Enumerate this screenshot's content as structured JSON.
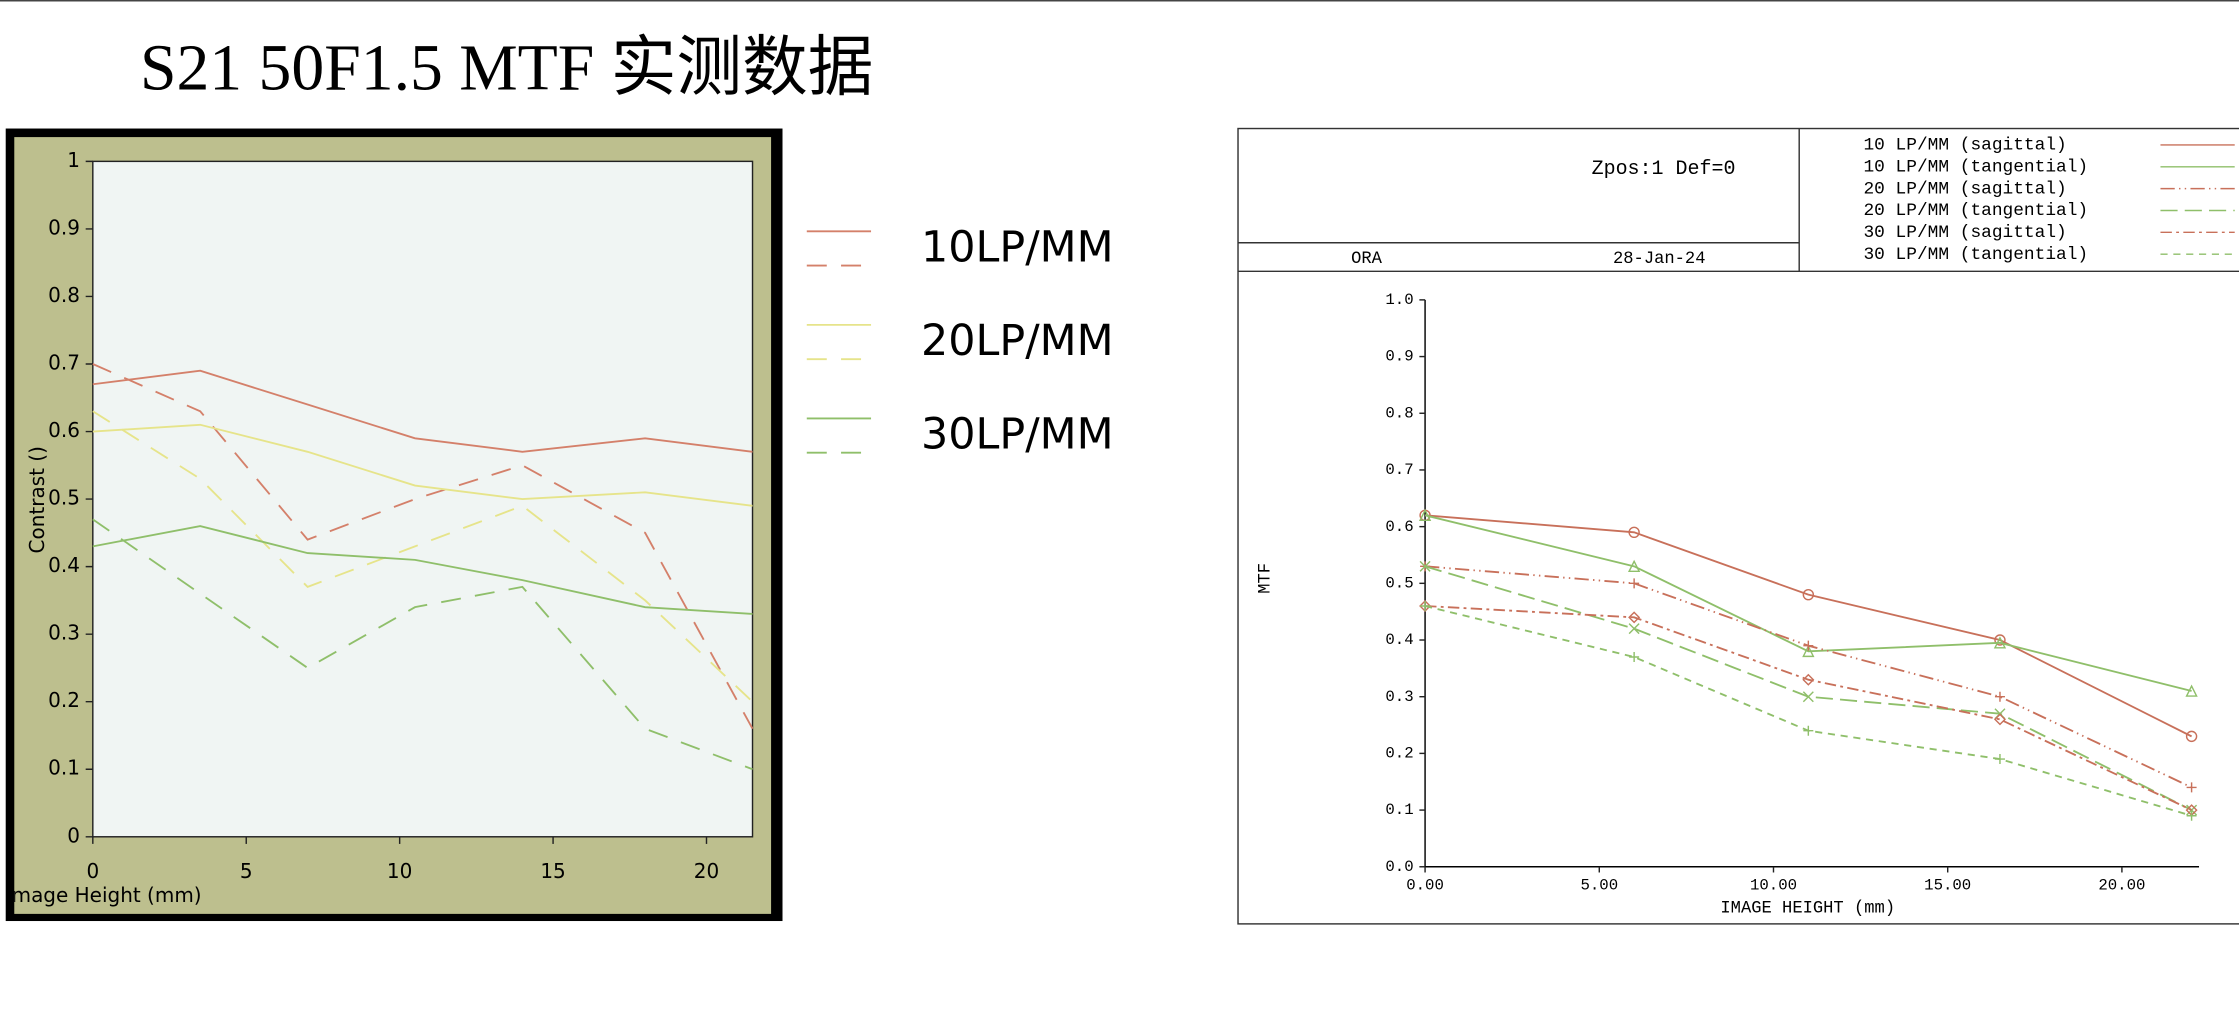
{
  "title": "S21 50F1.5  MTF  实测数据",
  "chart_data": [
    {
      "type": "line",
      "x_label": "Image Height (mm)",
      "y_label": "Contrast ()",
      "x": [
        0,
        3.5,
        7,
        10.5,
        14,
        18,
        21.5
      ],
      "xlim": [
        0,
        21.5
      ],
      "xticks": [
        0,
        5,
        10,
        15,
        20
      ],
      "ylim": [
        0,
        1
      ],
      "yticks": [
        0,
        0.1,
        0.2,
        0.3,
        0.4,
        0.5,
        0.6,
        0.7,
        0.8,
        0.9,
        1
      ],
      "series": [
        {
          "name": "10LP/MM",
          "color": "#d4806a",
          "values": [
            0.67,
            0.69,
            0.64,
            0.59,
            0.57,
            0.59,
            0.57
          ],
          "dashed_values": [
            0.7,
            0.63,
            0.44,
            0.5,
            0.55,
            0.45,
            0.16
          ]
        },
        {
          "name": "20LP/MM",
          "color": "#e6e48a",
          "values": [
            0.6,
            0.61,
            0.57,
            0.52,
            0.5,
            0.51,
            0.49
          ],
          "dashed_values": [
            0.63,
            0.53,
            0.37,
            0.43,
            0.49,
            0.35,
            0.2
          ]
        },
        {
          "name": "30LP/MM",
          "color": "#8fbf6a",
          "values": [
            0.43,
            0.46,
            0.42,
            0.41,
            0.38,
            0.34,
            0.33
          ],
          "dashed_values": [
            0.47,
            0.36,
            0.25,
            0.34,
            0.37,
            0.16,
            0.1
          ]
        }
      ]
    },
    {
      "type": "line",
      "title": "Zpos:1 Def=0",
      "label": "ORA",
      "date": "28-Jan-24",
      "x_label": "IMAGE HEIGHT (mm)",
      "y_label": "MTF",
      "x": [
        0,
        6,
        11,
        16.5,
        22
      ],
      "xlim": [
        0,
        22
      ],
      "xticks": [
        {
          "value": 0,
          "label": "0.00"
        },
        {
          "value": 5,
          "label": "5.00"
        },
        {
          "value": 10,
          "label": "10.00"
        },
        {
          "value": 15,
          "label": "15.00"
        },
        {
          "value": 20,
          "label": "20.00"
        }
      ],
      "ylim": [
        0,
        1
      ],
      "yticks": [
        {
          "value": 0,
          "label": "0.0"
        },
        {
          "value": 0.1,
          "label": "0.1"
        },
        {
          "value": 0.2,
          "label": "0.2"
        },
        {
          "value": 0.3,
          "label": "0.3"
        },
        {
          "value": 0.4,
          "label": "0.4"
        },
        {
          "value": 0.5,
          "label": "0.5"
        },
        {
          "value": 0.6,
          "label": "0.6"
        },
        {
          "value": 0.7,
          "label": "0.7"
        },
        {
          "value": 0.8,
          "label": "0.8"
        },
        {
          "value": 0.9,
          "label": "0.9"
        },
        {
          "value": 1,
          "label": "1.0"
        }
      ],
      "series": [
        {
          "name": "10 LP/MM (sagittal)",
          "color": "#c8705a",
          "dash": "none",
          "marker": "circle",
          "values": [
            0.62,
            0.59,
            0.48,
            0.4,
            0.23
          ]
        },
        {
          "name": "10 LP/MM (tangential)",
          "color": "#8fbf6a",
          "dash": "none",
          "marker": "triangle",
          "values": [
            0.62,
            0.53,
            0.38,
            0.395,
            0.31
          ]
        },
        {
          "name": "20 LP/MM (sagittal)",
          "color": "#c8705a",
          "dash": "10 3 1 3 1 3",
          "marker": "plus",
          "values": [
            0.53,
            0.5,
            0.39,
            0.3,
            0.14
          ]
        },
        {
          "name": "20 LP/MM (tangential)",
          "color": "#8fbf6a",
          "dash": "12 5",
          "marker": "x",
          "values": [
            0.53,
            0.42,
            0.3,
            0.27,
            0.1
          ]
        },
        {
          "name": "30 LP/MM (sagittal)",
          "color": "#c8705a",
          "dash": "8 3 2 3",
          "marker": "diamond",
          "values": [
            0.46,
            0.44,
            0.33,
            0.26,
            0.1
          ]
        },
        {
          "name": "30 LP/MM (tangential)",
          "color": "#8fbf6a",
          "dash": "5 4",
          "marker": "plus",
          "values": [
            0.46,
            0.37,
            0.24,
            0.19,
            0.09
          ]
        }
      ]
    }
  ]
}
